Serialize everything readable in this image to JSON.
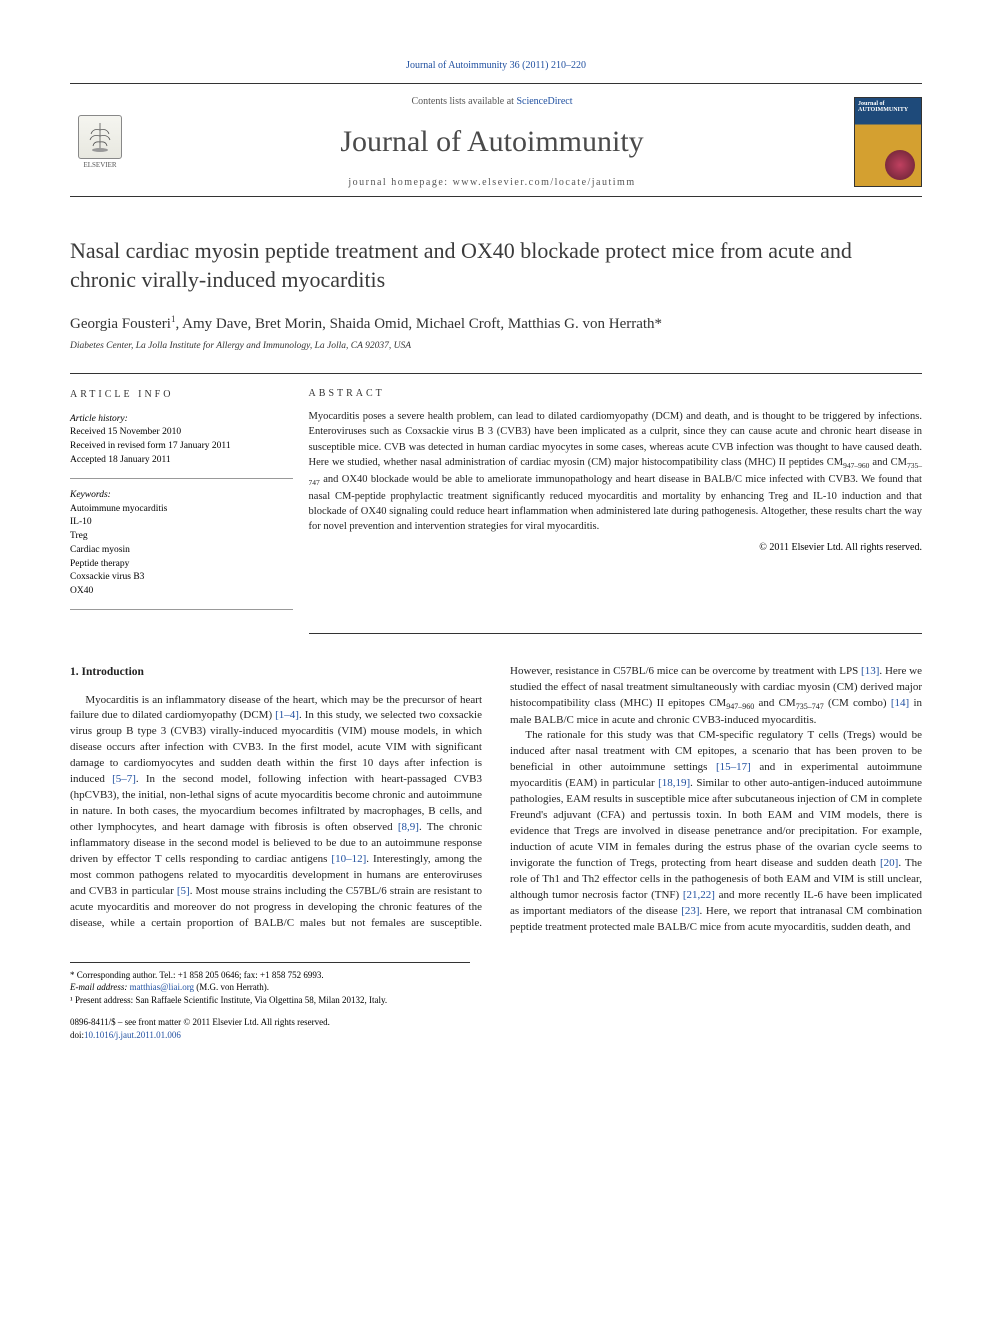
{
  "citation": "Journal of Autoimmunity 36 (2011) 210–220",
  "header": {
    "contents_prefix": "Contents lists available at ",
    "contents_link": "ScienceDirect",
    "journal_title": "Journal of Autoimmunity",
    "homepage_prefix": "journal homepage: ",
    "homepage_url": "www.elsevier.com/locate/jautimm",
    "publisher": "ELSEVIER",
    "cover_label_top": "Journal of",
    "cover_label_main": "AUTOIMMUNITY"
  },
  "title": "Nasal cardiac myosin peptide treatment and OX40 blockade protect mice from acute and chronic virally-induced myocarditis",
  "authors_html": "Georgia Fousteri<sup>1</sup>, Amy Dave, Bret Morin, Shaida Omid, Michael Croft, Matthias G. von Herrath*",
  "affiliation": "Diabetes Center, La Jolla Institute for Allergy and Immunology, La Jolla, CA 92037, USA",
  "article_info": {
    "heading": "ARTICLE INFO",
    "history_label": "Article history:",
    "received": "Received 15 November 2010",
    "revised": "Received in revised form 17 January 2011",
    "accepted": "Accepted 18 January 2011",
    "keywords_label": "Keywords:",
    "keywords": [
      "Autoimmune myocarditis",
      "IL-10",
      "Treg",
      "Cardiac myosin",
      "Peptide therapy",
      "Coxsackie virus B3",
      "OX40"
    ]
  },
  "abstract": {
    "heading": "ABSTRACT",
    "copyright": "© 2011 Elsevier Ltd. All rights reserved."
  },
  "section1_heading": "1. Introduction",
  "footnotes": {
    "corr": "* Corresponding author. Tel.: +1 858 205 0646; fax: +1 858 752 6993.",
    "email_label": "E-mail address: ",
    "email": "matthias@liai.org",
    "email_suffix": " (M.G. von Herrath).",
    "present": "¹ Present address: San Raffaele Scientific Institute, Via Olgettina 58, Milan 20132, Italy."
  },
  "footer": {
    "line1": "0896-8411/$ – see front matter © 2011 Elsevier Ltd. All rights reserved.",
    "doi_label": "doi:",
    "doi": "10.1016/j.jaut.2011.01.006"
  },
  "colors": {
    "link": "#2050a0",
    "rule": "#333333",
    "text": "#222222"
  }
}
